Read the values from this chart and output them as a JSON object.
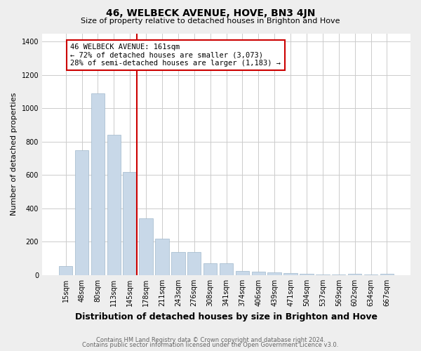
{
  "title": "46, WELBECK AVENUE, HOVE, BN3 4JN",
  "subtitle": "Size of property relative to detached houses in Brighton and Hove",
  "xlabel": "Distribution of detached houses by size in Brighton and Hove",
  "ylabel": "Number of detached properties",
  "categories": [
    "15sqm",
    "48sqm",
    "80sqm",
    "113sqm",
    "145sqm",
    "178sqm",
    "211sqm",
    "243sqm",
    "276sqm",
    "308sqm",
    "341sqm",
    "374sqm",
    "406sqm",
    "439sqm",
    "471sqm",
    "504sqm",
    "537sqm",
    "569sqm",
    "602sqm",
    "634sqm",
    "667sqm"
  ],
  "values": [
    55,
    750,
    1090,
    840,
    620,
    340,
    220,
    140,
    140,
    70,
    70,
    25,
    20,
    15,
    12,
    8,
    5,
    3,
    8,
    3,
    8
  ],
  "bar_color": "#c8d8e8",
  "bar_edge_color": "#a0b8cc",
  "vline_x_index": 4,
  "vline_color": "#cc0000",
  "annotation_line1": "46 WELBECK AVENUE: 161sqm",
  "annotation_line2": "← 72% of detached houses are smaller (3,073)",
  "annotation_line3": "28% of semi-detached houses are larger (1,183) →",
  "annotation_box_edge": "#cc0000",
  "ylim": [
    0,
    1450
  ],
  "yticks": [
    0,
    200,
    400,
    600,
    800,
    1000,
    1200,
    1400
  ],
  "footer1": "Contains HM Land Registry data © Crown copyright and database right 2024.",
  "footer2": "Contains public sector information licensed under the Open Government Licence v3.0.",
  "bg_color": "#eeeeee",
  "plot_bg_color": "#ffffff",
  "grid_color": "#cccccc",
  "title_fontsize": 10,
  "subtitle_fontsize": 8,
  "xlabel_fontsize": 9,
  "ylabel_fontsize": 8,
  "tick_fontsize": 7,
  "annotation_fontsize": 7.5,
  "footer_fontsize": 6.0
}
